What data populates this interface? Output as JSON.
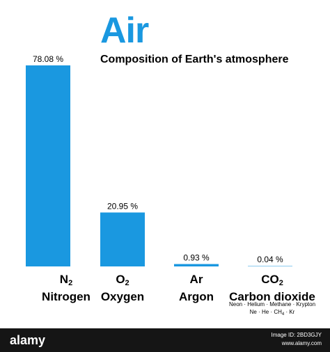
{
  "chart_data": {
    "type": "bar",
    "title": "Air",
    "subtitle": "Composition of Earth's atmosphere",
    "categories": [
      "N2 Nitrogen",
      "O2 Oxygen",
      "Ar Argon",
      "CO2 Carbon dioxide"
    ],
    "formulas": [
      {
        "base": "N",
        "sub": "2"
      },
      {
        "base": "O",
        "sub": "2"
      },
      {
        "base": "Ar",
        "sub": ""
      },
      {
        "base": "CO",
        "sub": "2"
      }
    ],
    "names": [
      "Nitrogen",
      "Oxygen",
      "Argon",
      "Carbon dioxide"
    ],
    "values": [
      78.08,
      20.95,
      0.93,
      0.04
    ],
    "value_labels": [
      "78.08 %",
      "20.95 %",
      "0.93 %",
      "0.04 %"
    ],
    "unit": "%",
    "ylim": [
      0,
      78.08
    ],
    "xlabel": "",
    "ylabel": "",
    "grid": false,
    "legend": "none",
    "note_line1": "Neon · Helium · Methane · Krypton",
    "note_line2_parts": [
      "Ne · He · CH",
      "4",
      " · Kr"
    ]
  },
  "colors": {
    "bar": "#1a98e0",
    "title": "#1a98e0",
    "text": "#000000",
    "footer_bg": "#151515",
    "footer_text": "#ffffff"
  },
  "watermark": {
    "logo": "alamy",
    "image_id_label": "Image ID: 2BD3GJY",
    "site": "www.alamy.com"
  }
}
